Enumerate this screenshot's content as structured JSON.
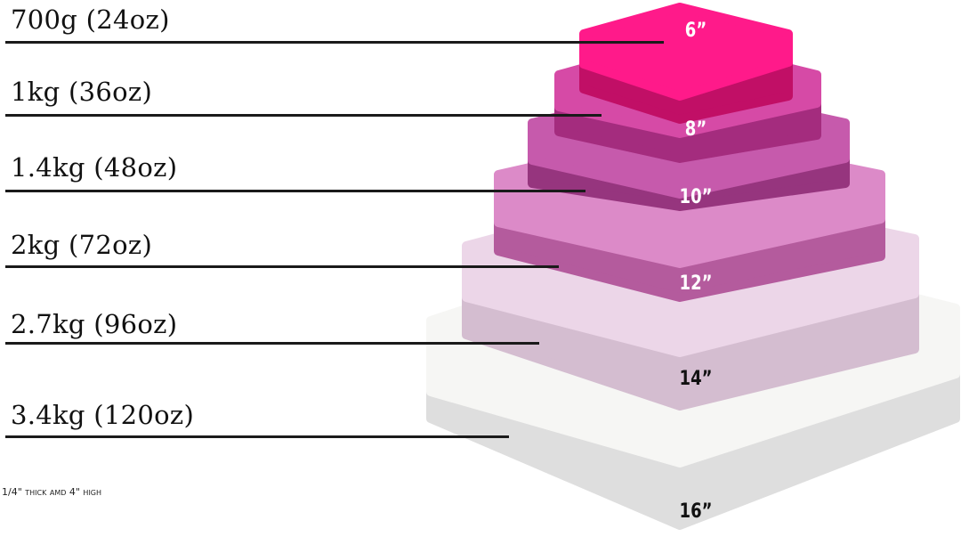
{
  "note": "1/4\" thick amd 4\" high",
  "tiers": [
    {
      "weight": "700g (24oz)",
      "size": "6”",
      "top": "#ff1a8a",
      "side": "#c10f66",
      "size_color": "#ffffff"
    },
    {
      "weight": "1kg (36oz)",
      "size": "8”",
      "top": "#d64aa6",
      "side": "#a42c7e",
      "size_color": "#ffffff"
    },
    {
      "weight": "1.4kg (48oz)",
      "size": "10”",
      "top": "#c65aac",
      "side": "#96357e",
      "size_color": "#ffffff"
    },
    {
      "weight": "2kg (72oz)",
      "size": "12”",
      "top": "#dc8ac8",
      "side": "#b45b9d",
      "size_color": "#ffffff"
    },
    {
      "weight": "2.7kg (96oz)",
      "size": "14”",
      "top": "#ecd6e8",
      "side": "#d4bdd0",
      "size_color": "#111111"
    },
    {
      "weight": "3.4kg (120oz)",
      "size": "16”",
      "top": "#f6f6f4",
      "side": "#dedede",
      "size_color": "#111111"
    }
  ]
}
